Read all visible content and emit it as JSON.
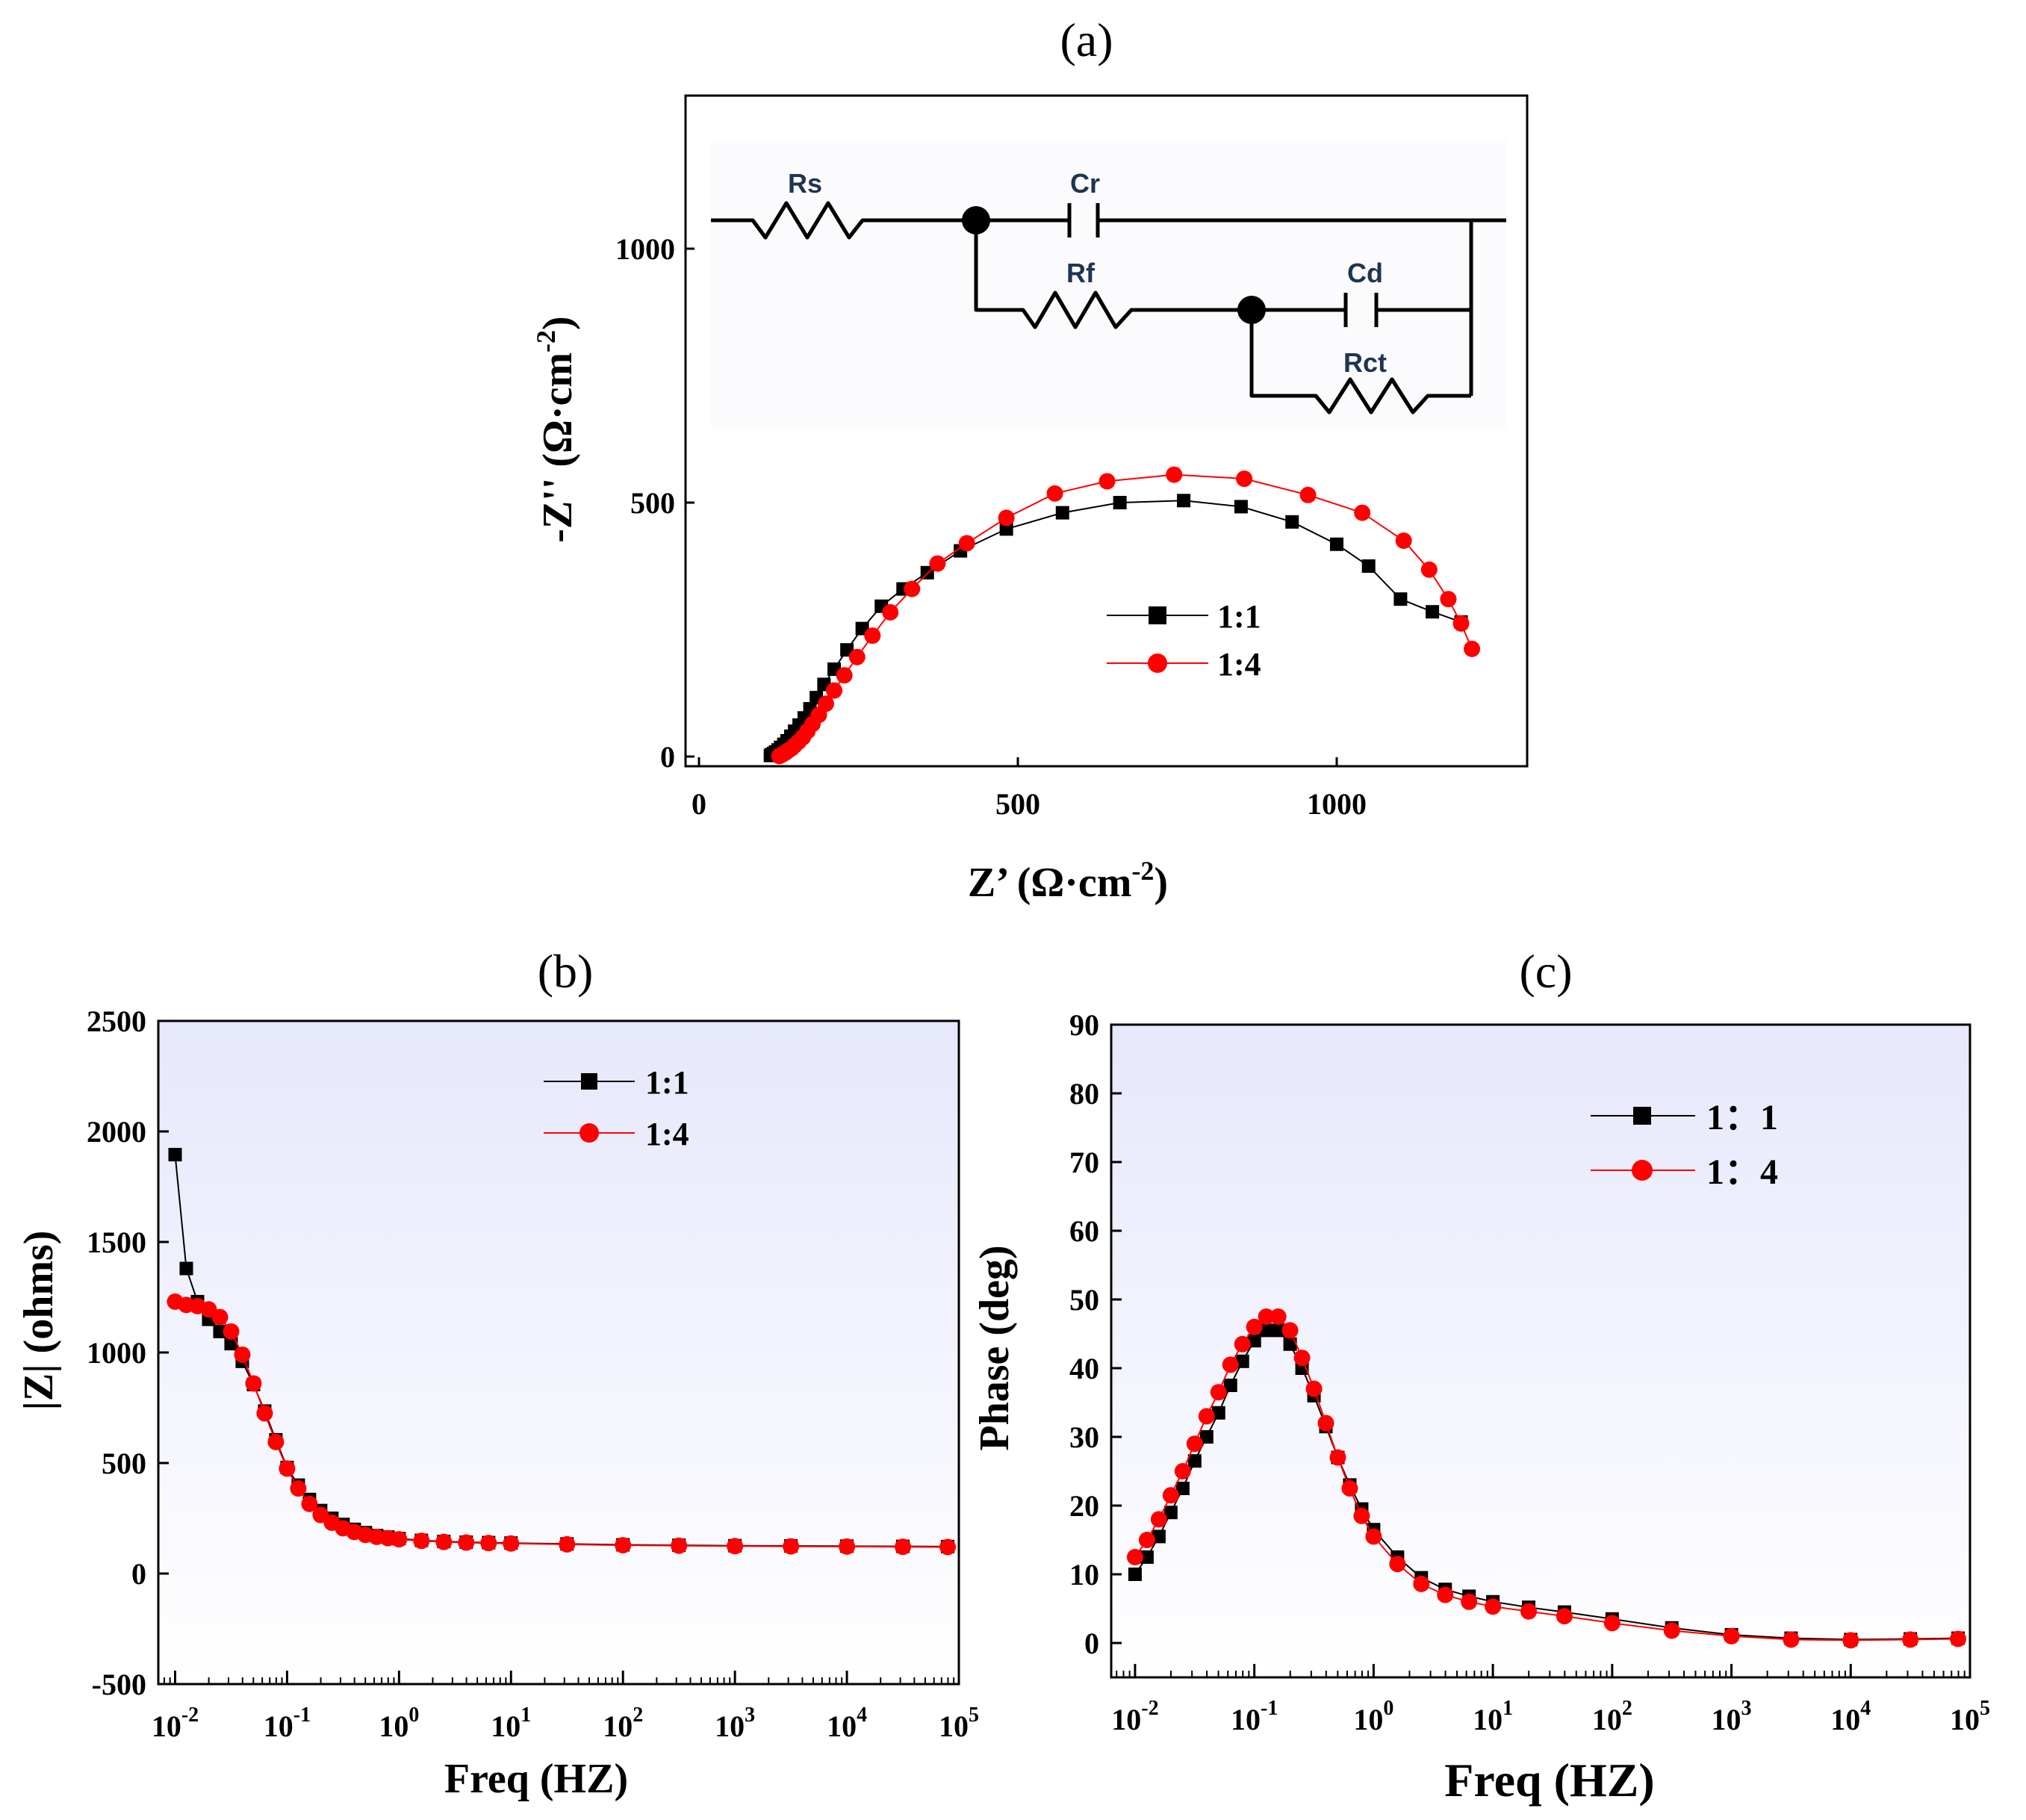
{
  "chart_data": [
    {
      "panel_label": "(a)",
      "type": "scatter",
      "title": "",
      "xlabel": "Z’ (Ω·cm",
      "xlabel_sup": "-2",
      "xlabel_end": ")",
      "ylabel": "-Z'' (Ω·cm",
      "ylabel_sup": "-2",
      "ylabel_end": ")",
      "xlim": [
        -30,
        1300
      ],
      "ylim": [
        -15,
        1300
      ],
      "xticks": [
        0,
        500,
        1000
      ],
      "yticks": [
        0,
        500,
        1000
      ],
      "legend_position": "center-right",
      "series": [
        {
          "name": "1:1",
          "color": "#000000",
          "marker": "square",
          "x": [
            112,
            114,
            117,
            120,
            124,
            128,
            133,
            138,
            144,
            150,
            157,
            165,
            174,
            184,
            196,
            212,
            232,
            256,
            286,
            320,
            358,
            410,
            482,
            570,
            660,
            760,
            850,
            930,
            1000,
            1050,
            1100,
            1150,
            1195
          ],
          "y": [
            2,
            4,
            6,
            9,
            13,
            18,
            24,
            31,
            40,
            50,
            62,
            76,
            94,
            116,
            142,
            172,
            210,
            252,
            296,
            330,
            362,
            405,
            448,
            480,
            500,
            504,
            492,
            462,
            418,
            375,
            310,
            285,
            265
          ]
        },
        {
          "name": "1:4",
          "color": "#ff0000",
          "marker": "circle",
          "x": [
            126,
            129,
            132,
            136,
            140,
            145,
            150,
            156,
            163,
            170,
            178,
            188,
            199,
            212,
            228,
            248,
            272,
            300,
            334,
            374,
            420,
            482,
            558,
            640,
            745,
            855,
            955,
            1040,
            1105,
            1145,
            1175,
            1195,
            1212
          ],
          "y": [
            1,
            3,
            5,
            8,
            12,
            16,
            22,
            29,
            38,
            50,
            64,
            82,
            104,
            130,
            160,
            196,
            238,
            284,
            330,
            380,
            420,
            470,
            518,
            542,
            555,
            547,
            515,
            480,
            425,
            368,
            310,
            262,
            212
          ]
        }
      ],
      "circuit_labels": [
        "Rs",
        "Cr",
        "Rf",
        "Cd",
        "Rct"
      ]
    },
    {
      "panel_label": "(b)",
      "type": "scatter",
      "title": "",
      "xlabel": "Freq (HZ)",
      "ylabel": "|Z| (ohms)",
      "xscale": "log",
      "xlim_log10": [
        -2.15,
        5.0
      ],
      "ylim": [
        -500,
        2500
      ],
      "xticks_log10": [
        -2,
        -1,
        0,
        1,
        2,
        3,
        4,
        5
      ],
      "yticks": [
        -500,
        0,
        500,
        1000,
        1500,
        2000,
        2500
      ],
      "legend_position": "top-center",
      "series": [
        {
          "name": "1:1",
          "color": "#000000",
          "marker": "square",
          "logf": [
            -2.0,
            -1.9,
            -1.8,
            -1.7,
            -1.6,
            -1.5,
            -1.4,
            -1.3,
            -1.2,
            -1.1,
            -1.0,
            -0.9,
            -0.8,
            -0.7,
            -0.6,
            -0.5,
            -0.4,
            -0.3,
            -0.2,
            -0.1,
            0.0,
            0.2,
            0.4,
            0.6,
            0.8,
            1.0,
            1.5,
            2.0,
            2.5,
            3.0,
            3.5,
            4.0,
            4.5,
            4.9
          ],
          "values": [
            1895,
            1380,
            1230,
            1150,
            1095,
            1040,
            960,
            855,
            735,
            605,
            480,
            400,
            335,
            285,
            250,
            222,
            200,
            185,
            172,
            165,
            158,
            150,
            145,
            142,
            140,
            138,
            134,
            130,
            128,
            126,
            125,
            124,
            123,
            122
          ]
        },
        {
          "name": "1:4",
          "color": "#ff0000",
          "marker": "circle",
          "logf": [
            -2.0,
            -1.9,
            -1.8,
            -1.7,
            -1.6,
            -1.5,
            -1.4,
            -1.3,
            -1.2,
            -1.1,
            -1.0,
            -0.9,
            -0.8,
            -0.7,
            -0.6,
            -0.5,
            -0.4,
            -0.3,
            -0.2,
            -0.1,
            0.0,
            0.2,
            0.4,
            0.6,
            0.8,
            1.0,
            1.5,
            2.0,
            2.5,
            3.0,
            3.5,
            4.0,
            4.5,
            4.9
          ],
          "values": [
            1230,
            1215,
            1210,
            1195,
            1160,
            1095,
            990,
            860,
            725,
            595,
            475,
            385,
            315,
            265,
            230,
            205,
            188,
            175,
            166,
            160,
            155,
            148,
            143,
            140,
            138,
            136,
            132,
            128,
            126,
            124,
            123,
            122,
            121,
            120
          ]
        }
      ]
    },
    {
      "panel_label": "(c)",
      "type": "scatter",
      "title": "",
      "xlabel": "Freq (HZ)",
      "ylabel": "Phase (deg)",
      "xscale": "log",
      "xlim_log10": [
        -2.2,
        5.0
      ],
      "ylim": [
        -5,
        90
      ],
      "xticks_log10": [
        -2,
        -1,
        0,
        1,
        2,
        3,
        4,
        5
      ],
      "yticks": [
        0,
        10,
        20,
        30,
        40,
        50,
        60,
        70,
        80,
        90
      ],
      "legend_position": "top-right",
      "series": [
        {
          "name": "1：1",
          "color": "#000000",
          "marker": "square",
          "logf": [
            -2.0,
            -1.9,
            -1.8,
            -1.7,
            -1.6,
            -1.5,
            -1.4,
            -1.3,
            -1.2,
            -1.1,
            -1.0,
            -0.9,
            -0.8,
            -0.7,
            -0.6,
            -0.5,
            -0.4,
            -0.3,
            -0.2,
            -0.1,
            0.0,
            0.2,
            0.4,
            0.6,
            0.8,
            1.0,
            1.3,
            1.6,
            2.0,
            2.5,
            3.0,
            3.5,
            4.0,
            4.5,
            4.9
          ],
          "values": [
            10,
            12.5,
            15.5,
            19,
            22.5,
            26.5,
            30,
            33.5,
            37.5,
            41,
            44,
            45.5,
            45.5,
            43.5,
            40,
            36,
            31.5,
            27,
            23,
            19.5,
            16.5,
            12.5,
            9.5,
            7.8,
            6.8,
            6.0,
            5.2,
            4.5,
            3.5,
            2.2,
            1.2,
            0.7,
            0.5,
            0.6,
            0.7
          ]
        },
        {
          "name": "1：4",
          "color": "#ff0000",
          "marker": "circle",
          "logf": [
            -2.0,
            -1.9,
            -1.8,
            -1.7,
            -1.6,
            -1.5,
            -1.4,
            -1.3,
            -1.2,
            -1.1,
            -1.0,
            -0.9,
            -0.8,
            -0.7,
            -0.6,
            -0.5,
            -0.4,
            -0.3,
            -0.2,
            -0.1,
            0.0,
            0.2,
            0.4,
            0.6,
            0.8,
            1.0,
            1.3,
            1.6,
            2.0,
            2.5,
            3.0,
            3.5,
            4.0,
            4.5,
            4.9
          ],
          "values": [
            12.5,
            15,
            18,
            21.5,
            25,
            29,
            33,
            36.5,
            40.5,
            43.5,
            46,
            47.5,
            47.5,
            45.5,
            41.5,
            37,
            32,
            27,
            22.5,
            18.5,
            15.5,
            11.5,
            8.6,
            7.0,
            6.0,
            5.3,
            4.6,
            3.9,
            2.9,
            1.8,
            1.0,
            0.5,
            0.4,
            0.5,
            0.6
          ]
        }
      ]
    }
  ]
}
